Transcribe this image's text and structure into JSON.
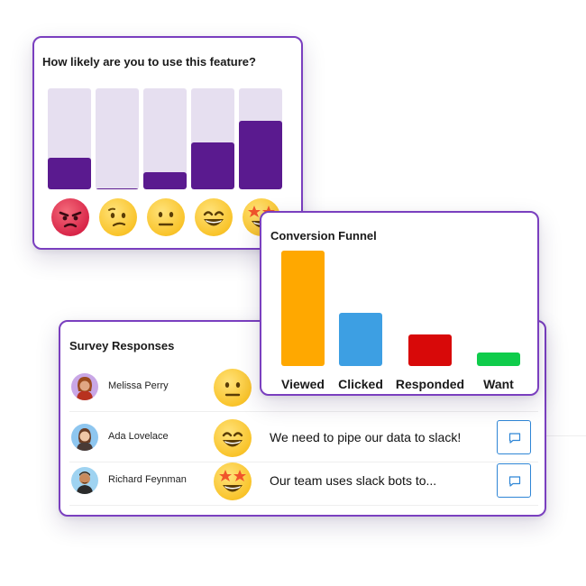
{
  "rating_widget": {
    "question": "How likely are you to use this feature?",
    "scale": [
      {
        "icon": "angry-face-icon",
        "fraction": 0.31
      },
      {
        "icon": "confused-face-icon",
        "fraction": 0.01
      },
      {
        "icon": "neutral-face-icon",
        "fraction": 0.17
      },
      {
        "icon": "grinning-face-icon",
        "fraction": 0.46
      },
      {
        "icon": "star-struck-face-icon",
        "fraction": 0.68
      }
    ],
    "colors": {
      "fill": "#5a1a8f",
      "track": "#e6dff0"
    }
  },
  "funnel": {
    "title": "Conversion Funnel",
    "chart_data": {
      "type": "bar",
      "categories": [
        "Viewed",
        "Clicked",
        "Responded",
        "Want"
      ],
      "values": [
        100,
        46,
        27,
        12
      ],
      "colors": [
        "#ffa800",
        "#3d9fe3",
        "#d80909",
        "#0fcc4b"
      ],
      "ylim": [
        0,
        100
      ]
    }
  },
  "survey": {
    "title": "Survey Responses",
    "rows": [
      {
        "name": "Melissa Perry",
        "emoji": "neutral-face-icon",
        "comment": ""
      },
      {
        "name": "Ada Lovelace",
        "emoji": "grinning-face-icon",
        "comment": "We need to pipe our data to slack!"
      },
      {
        "name": "Richard Feynman",
        "emoji": "star-struck-face-icon",
        "comment": "Our team uses slack bots to..."
      }
    ]
  }
}
